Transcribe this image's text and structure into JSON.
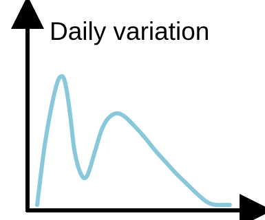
{
  "chart_data": {
    "type": "line",
    "title": "Daily variation",
    "xlabel": "",
    "ylabel": "",
    "grid": false,
    "legend": "none",
    "xlim": [
      0,
      100
    ],
    "ylim": [
      0,
      100
    ],
    "series": [
      {
        "color": "#89c8db",
        "x": [
          0,
          4,
          9,
          12,
          14,
          16,
          18,
          21,
          24,
          28,
          31,
          34,
          38,
          42,
          47,
          52,
          57,
          62,
          67,
          72,
          77,
          82,
          86,
          90,
          93
        ],
        "y": [
          0,
          45,
          82,
          90,
          82,
          62,
          38,
          22,
          20,
          38,
          52,
          60,
          64,
          62,
          55,
          47,
          38,
          30,
          22,
          15,
          8,
          2,
          0,
          0,
          0
        ]
      }
    ],
    "axis_color": "#000000"
  }
}
